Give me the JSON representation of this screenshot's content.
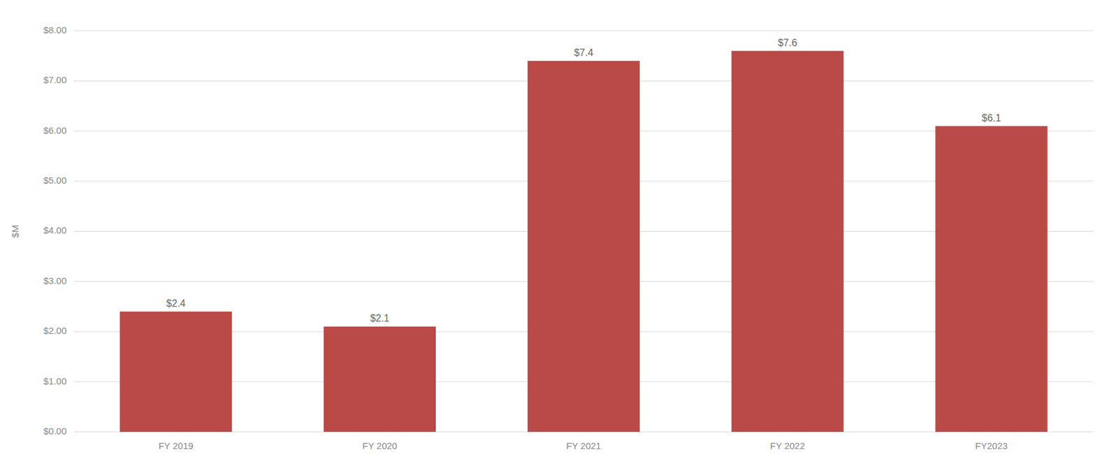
{
  "chart_data": {
    "type": "bar",
    "categories": [
      "FY 2019",
      "FY 2020",
      "FY 2021",
      "FY 2022",
      "FY2023"
    ],
    "values": [
      2.4,
      2.1,
      7.4,
      7.6,
      6.1
    ],
    "value_labels": [
      "$2.4",
      "$2.1",
      "$7.4",
      "$7.6",
      "$6.1"
    ],
    "data_labels": true,
    "color": "#b94a48",
    "ylabel": "$M",
    "ylim": [
      0,
      8.0
    ],
    "yticks": [
      {
        "value": 0.0,
        "label": "$0.00"
      },
      {
        "value": 1.0,
        "label": "$1.00"
      },
      {
        "value": 2.0,
        "label": "$2.00"
      },
      {
        "value": 3.0,
        "label": "$3.00"
      },
      {
        "value": 4.0,
        "label": "$4.00"
      },
      {
        "value": 5.0,
        "label": "$5.00"
      },
      {
        "value": 6.0,
        "label": "$6.00"
      },
      {
        "value": 7.0,
        "label": "$7.00"
      },
      {
        "value": 8.0,
        "label": "$8.00"
      }
    ],
    "grid": true
  }
}
